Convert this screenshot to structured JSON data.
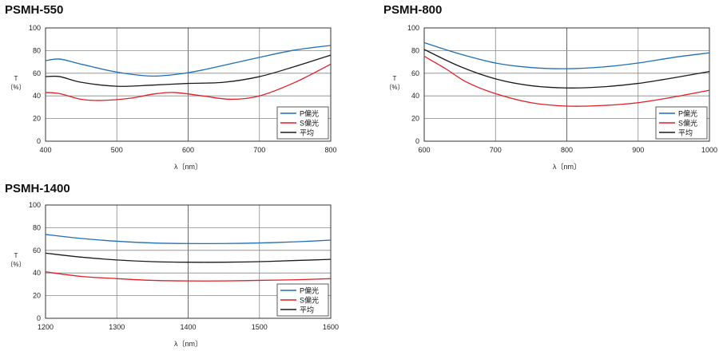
{
  "colors": {
    "p": "#1f6fb4",
    "s": "#e01f26",
    "avg": "#1a1a1a",
    "grid": "#888888",
    "frame": "#333333"
  },
  "chart_data": [
    {
      "type": "line",
      "title": "PSMH-550",
      "xlabel": "λ〔nm〕",
      "ylabel": [
        "T",
        "〔%〕"
      ],
      "xlim": [
        400,
        800
      ],
      "ylim": [
        0,
        100
      ],
      "xticks": [
        400,
        500,
        600,
        700,
        800
      ],
      "yticks": [
        0,
        20,
        40,
        60,
        80,
        100
      ],
      "grid": true,
      "legend_position": "bottom-right",
      "series": [
        {
          "name": "P偏光",
          "color_key": "p",
          "x": [
            400,
            420,
            450,
            500,
            550,
            600,
            650,
            700,
            750,
            800
          ],
          "y": [
            71,
            72.5,
            68,
            61,
            57.5,
            60.5,
            67,
            74,
            80.5,
            84.5
          ]
        },
        {
          "name": "S偏光",
          "color_key": "s",
          "x": [
            400,
            420,
            450,
            480,
            520,
            550,
            580,
            620,
            660,
            700,
            750,
            800
          ],
          "y": [
            43,
            42,
            37,
            36,
            38,
            41.5,
            43,
            40,
            37,
            40,
            52,
            68
          ]
        },
        {
          "name": "平均",
          "color_key": "avg",
          "x": [
            400,
            420,
            450,
            500,
            550,
            600,
            650,
            700,
            750,
            800
          ],
          "y": [
            57,
            57,
            52,
            48.5,
            49.5,
            51,
            52,
            57,
            66,
            76
          ]
        }
      ]
    },
    {
      "type": "line",
      "title": "PSMH-800",
      "xlabel": "λ〔nm〕",
      "ylabel": [
        "T",
        "〔%〕"
      ],
      "xlim": [
        600,
        1000
      ],
      "ylim": [
        0,
        100
      ],
      "xticks": [
        600,
        700,
        800,
        900,
        1000
      ],
      "yticks": [
        0,
        20,
        40,
        60,
        80,
        100
      ],
      "grid": true,
      "legend_position": "bottom-right",
      "series": [
        {
          "name": "P偏光",
          "color_key": "p",
          "x": [
            600,
            650,
            700,
            750,
            800,
            850,
            900,
            950,
            1000
          ],
          "y": [
            87,
            77,
            69,
            65,
            64,
            65.5,
            69,
            74,
            78
          ]
        },
        {
          "name": "S偏光",
          "color_key": "s",
          "x": [
            600,
            630,
            660,
            700,
            750,
            800,
            850,
            900,
            950,
            1000
          ],
          "y": [
            75,
            64,
            52,
            42,
            34,
            31,
            31.5,
            34,
            39,
            45
          ]
        },
        {
          "name": "平均",
          "color_key": "avg",
          "x": [
            600,
            650,
            700,
            750,
            800,
            850,
            900,
            950,
            1000
          ],
          "y": [
            81,
            66,
            55,
            49,
            47,
            48,
            51,
            56,
            61.5
          ]
        }
      ]
    },
    {
      "type": "line",
      "title": "PSMH-1400",
      "xlabel": "λ〔nm〕",
      "ylabel": [
        "T",
        "〔%〕"
      ],
      "xlim": [
        1200,
        1600
      ],
      "ylim": [
        0,
        100
      ],
      "xticks": [
        1200,
        1300,
        1400,
        1500,
        1600
      ],
      "yticks": [
        0,
        20,
        40,
        60,
        80,
        100
      ],
      "grid": true,
      "legend_position": "bottom-right",
      "series": [
        {
          "name": "P偏光",
          "color_key": "p",
          "x": [
            1200,
            1250,
            1300,
            1350,
            1400,
            1450,
            1500,
            1550,
            1600
          ],
          "y": [
            74,
            70.5,
            68,
            66.5,
            66,
            66,
            66.5,
            67.5,
            69
          ]
        },
        {
          "name": "S偏光",
          "color_key": "s",
          "x": [
            1200,
            1250,
            1300,
            1350,
            1400,
            1450,
            1500,
            1550,
            1600
          ],
          "y": [
            41,
            37,
            35,
            33.5,
            33,
            33,
            33.5,
            34,
            35
          ]
        },
        {
          "name": "平均",
          "color_key": "avg",
          "x": [
            1200,
            1250,
            1300,
            1350,
            1400,
            1450,
            1500,
            1550,
            1600
          ],
          "y": [
            57.5,
            54,
            51.5,
            50,
            49.5,
            49.5,
            50,
            51,
            52
          ]
        }
      ]
    }
  ]
}
